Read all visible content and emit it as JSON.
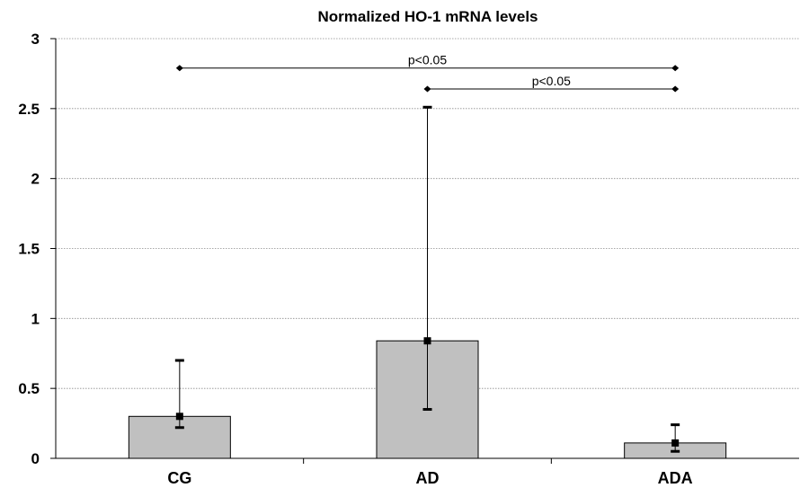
{
  "chart_data": {
    "type": "bar",
    "title": "Normalized HO-1 mRNA levels",
    "xlabel": "",
    "ylabel": "",
    "categories": [
      "CG",
      "AD",
      "ADA"
    ],
    "values": [
      0.3,
      0.84,
      0.11
    ],
    "error_low": [
      0.22,
      0.35,
      0.05
    ],
    "error_high": [
      0.7,
      2.51,
      0.24
    ],
    "ylim": [
      0,
      3
    ],
    "yticks": [
      0,
      0.5,
      1,
      1.5,
      2,
      2.5,
      3
    ],
    "ytick_labels": [
      "0",
      "0.5",
      "1",
      "1.5",
      "2",
      "2.5",
      "3"
    ],
    "grid": true,
    "bar_color": "#c0c0c0",
    "significance": [
      {
        "from": "CG",
        "to": "ADA",
        "y": 2.79,
        "label": "p<0.05"
      },
      {
        "from": "AD",
        "to": "ADA",
        "y": 2.64,
        "label": "p<0.05"
      }
    ]
  }
}
